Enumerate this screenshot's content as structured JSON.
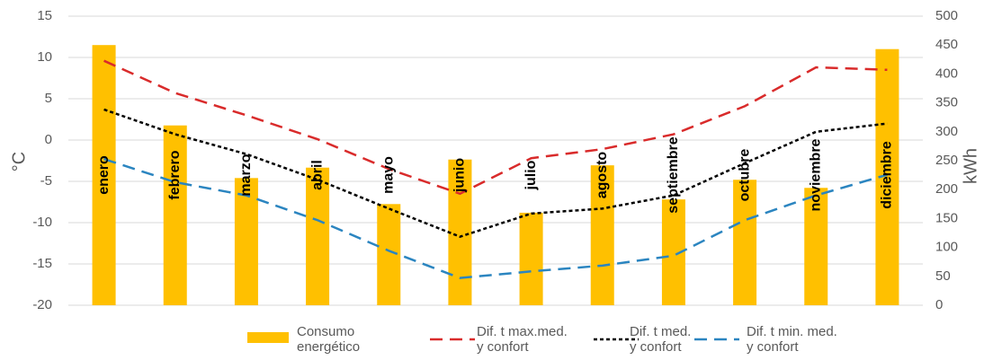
{
  "chart_data": {
    "type": "combo",
    "y_label": "°C",
    "y2_label": "kWh",
    "categories": [
      "enero",
      "febrero",
      "marzo",
      "abril",
      "mayo",
      "junio",
      "julio",
      "agosto",
      "septiembre",
      "octubre",
      "noviembre",
      "diciembre"
    ],
    "series": [
      {
        "name": "Consumo\nenergético",
        "type": "bar",
        "axis": "y2",
        "color": "#ffc000",
        "values": [
          450,
          311,
          220,
          238,
          175,
          252,
          160,
          242,
          183,
          217,
          203,
          443
        ]
      },
      {
        "name": "Dif. t max.med.\ny confort",
        "type": "line",
        "dash": "14 8",
        "color": "#d92b2b",
        "values": [
          9.6,
          5.7,
          3.0,
          0.1,
          -3.5,
          -6.5,
          -2.2,
          -1.1,
          0.7,
          4.1,
          8.8,
          8.5
        ]
      },
      {
        "name": "Dif. t med.\ny confort",
        "type": "line",
        "dash": "4 3",
        "color": "#000000",
        "values": [
          3.7,
          0.7,
          -1.7,
          -4.8,
          -8.3,
          -11.7,
          -8.9,
          -8.3,
          -6.7,
          -2.8,
          1.0,
          2.0
        ]
      },
      {
        "name": "Dif. t min. med.\ny confort",
        "type": "line",
        "dash": "14 8",
        "color": "#2b85c0",
        "values": [
          -2.3,
          -5.1,
          -6.7,
          -9.7,
          -13.4,
          -16.7,
          -15.9,
          -15.2,
          -14.0,
          -9.7,
          -6.7,
          -4.2
        ]
      }
    ],
    "ylim": [
      -20,
      15
    ],
    "yticks": [
      -20,
      -15,
      -10,
      -5,
      0,
      5,
      10,
      15
    ],
    "y2lim": [
      0,
      500
    ],
    "y2ticks": [
      0,
      50,
      100,
      150,
      200,
      250,
      300,
      350,
      400,
      450,
      500
    ],
    "grid": true
  }
}
